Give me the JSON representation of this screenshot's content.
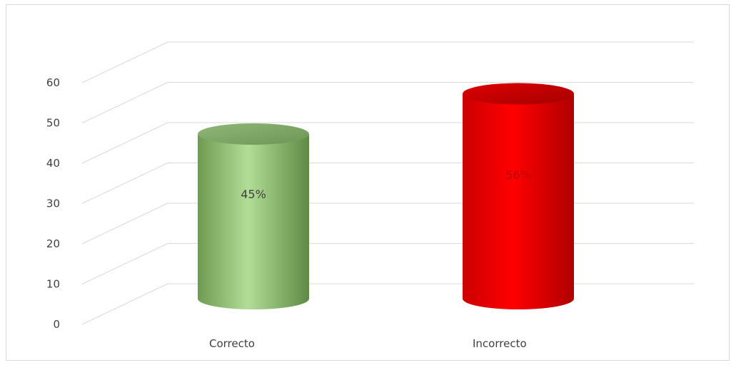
{
  "chart_data": {
    "type": "bar",
    "style": "3d-cylinder",
    "categories": [
      "Correcto",
      "Incorrecto"
    ],
    "values": [
      45,
      56
    ],
    "data_labels": [
      "45%",
      "56%"
    ],
    "colors": [
      "#a9d18e",
      "#ff0000"
    ],
    "label_colors": [
      "#404040",
      "#c00000"
    ],
    "ylim": [
      0,
      60
    ],
    "yticks": [
      "0",
      "10",
      "20",
      "30",
      "40",
      "50",
      "60"
    ],
    "grid": true,
    "title": "",
    "xlabel": "",
    "ylabel": ""
  }
}
